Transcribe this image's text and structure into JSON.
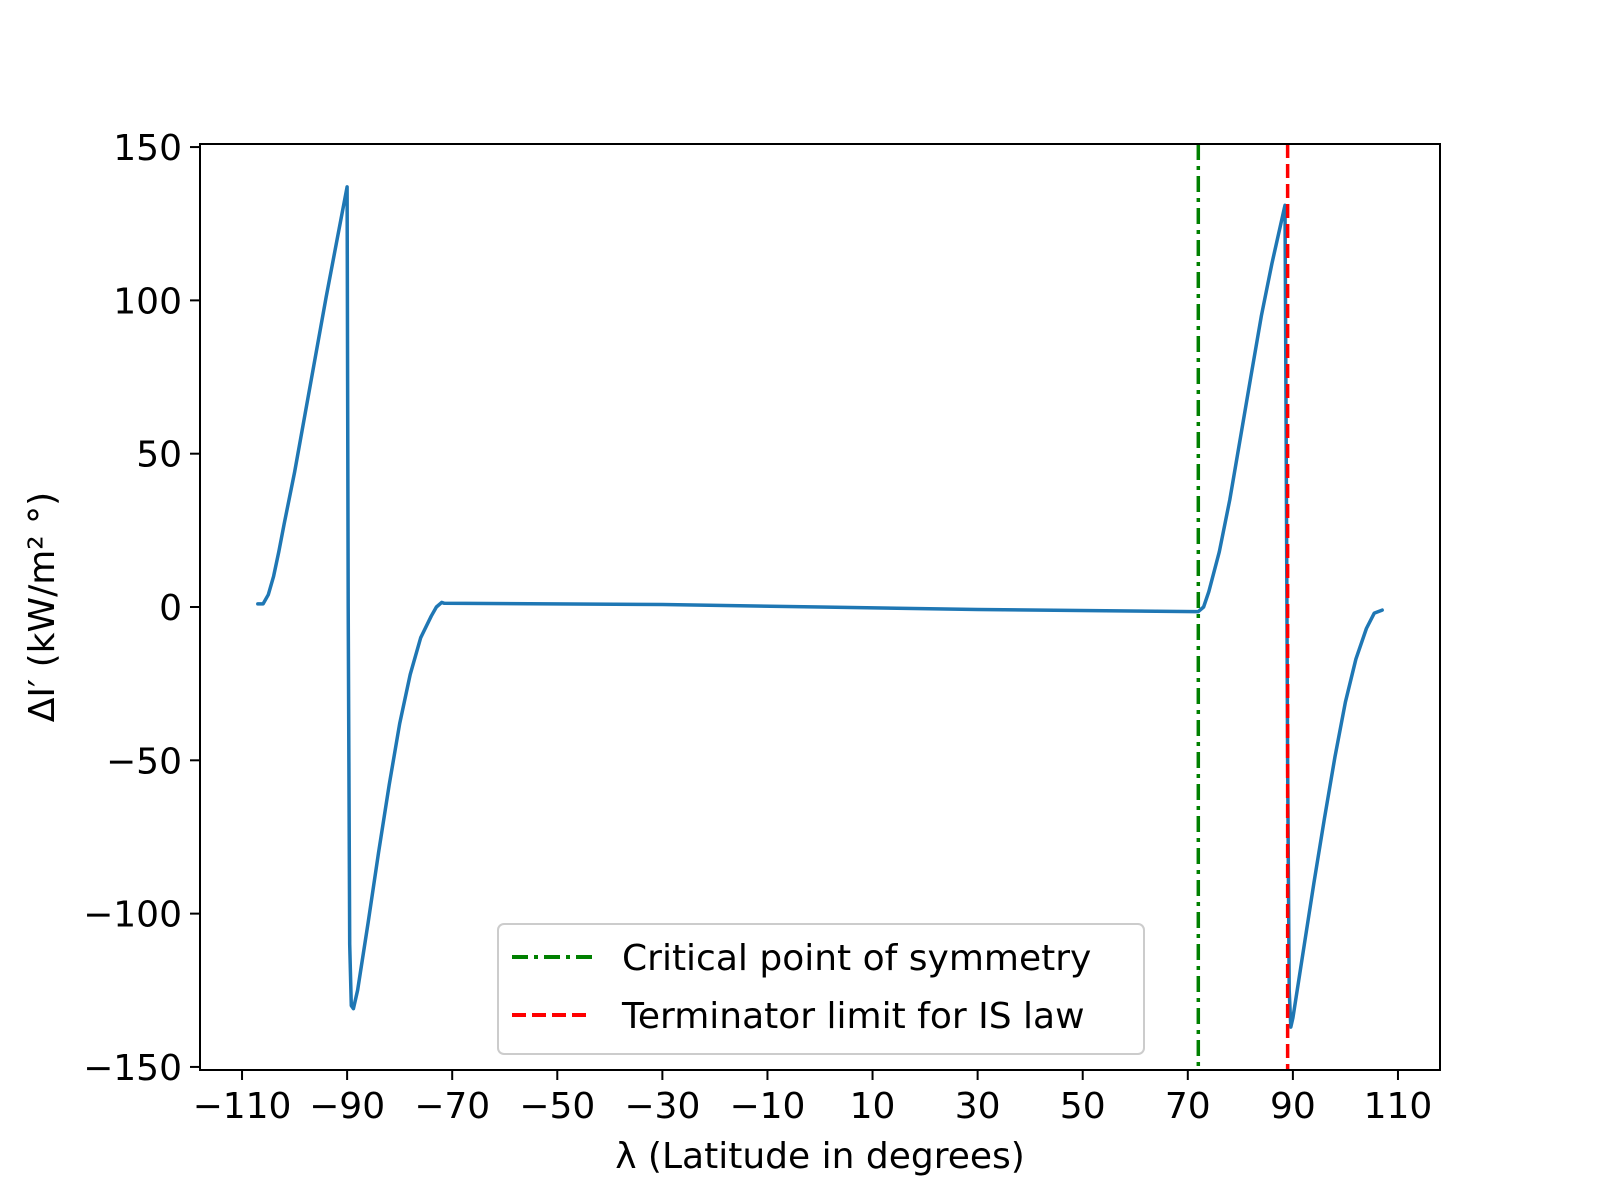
{
  "chart_data": {
    "type": "line",
    "xlabel": "λ (Latitude in degrees)",
    "ylabel": "ΔI′ (kW/m² °)",
    "xlim": [
      -118,
      118
    ],
    "ylim": [
      -151,
      151
    ],
    "xticks": [
      -110,
      -90,
      -70,
      -50,
      -30,
      -10,
      10,
      30,
      50,
      70,
      90,
      110
    ],
    "xtick_labels": [
      "−110",
      "−90",
      "−70",
      "−50",
      "−30",
      "−10",
      "10",
      "30",
      "50",
      "70",
      "90",
      "110"
    ],
    "yticks": [
      -150,
      -100,
      -50,
      0,
      50,
      100,
      150
    ],
    "ytick_labels": [
      "−150",
      "−100",
      "−50",
      "0",
      "50",
      "100",
      "150"
    ],
    "grid": false,
    "legend_position": "lower-center",
    "series": [
      {
        "color": "#1f77b4",
        "points": [
          [
            -107,
            1
          ],
          [
            -106,
            1
          ],
          [
            -105,
            4
          ],
          [
            -104,
            10
          ],
          [
            -103,
            18
          ],
          [
            -102,
            27
          ],
          [
            -100,
            44
          ],
          [
            -98,
            63
          ],
          [
            -96,
            82
          ],
          [
            -94,
            101
          ],
          [
            -92,
            119
          ],
          [
            -90,
            137
          ],
          [
            -89.8,
            0
          ],
          [
            -89.5,
            -110
          ],
          [
            -89.2,
            -130
          ],
          [
            -88.8,
            -131
          ],
          [
            -88,
            -125
          ],
          [
            -86,
            -103
          ],
          [
            -84,
            -80
          ],
          [
            -82,
            -58
          ],
          [
            -80,
            -38
          ],
          [
            -78,
            -22
          ],
          [
            -76,
            -10
          ],
          [
            -74,
            -3
          ],
          [
            -73,
            0
          ],
          [
            -72,
            1.5
          ],
          [
            -71.5,
            1.2
          ],
          [
            -30,
            0.8
          ],
          [
            0,
            0
          ],
          [
            30,
            -0.8
          ],
          [
            71.5,
            -1.5
          ],
          [
            72,
            -1.5
          ],
          [
            73,
            0
          ],
          [
            74,
            5
          ],
          [
            76,
            18
          ],
          [
            78,
            35
          ],
          [
            80,
            55
          ],
          [
            82,
            75
          ],
          [
            84,
            95
          ],
          [
            86,
            112
          ],
          [
            88.5,
            131
          ],
          [
            88.7,
            60
          ],
          [
            89,
            -50
          ],
          [
            89.3,
            -125
          ],
          [
            89.6,
            -137
          ],
          [
            90,
            -134
          ],
          [
            92,
            -112
          ],
          [
            94,
            -90
          ],
          [
            96,
            -69
          ],
          [
            98,
            -49
          ],
          [
            100,
            -31
          ],
          [
            102,
            -17
          ],
          [
            104,
            -7
          ],
          [
            105.5,
            -2
          ],
          [
            107,
            -1
          ]
        ]
      }
    ],
    "reference_lines": [
      {
        "label": "Critical point of symmetry",
        "x": 72,
        "color": "#008000",
        "style": "dashdot"
      },
      {
        "label": "Terminator limit for IS law",
        "x": 89,
        "color": "#ff0000",
        "style": "dashed"
      }
    ]
  }
}
